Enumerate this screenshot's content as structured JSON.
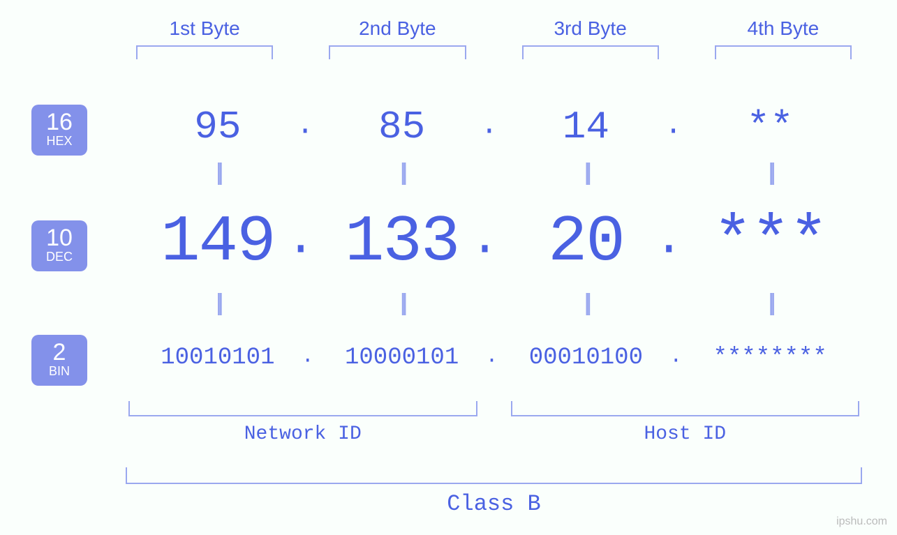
{
  "colors": {
    "background": "#fafffc",
    "text_primary": "#4a61e2",
    "bracket": "#9aa8ef",
    "badge_bg": "#8391ea",
    "badge_fg": "#ffffff",
    "equals": "#9aa8ef",
    "watermark": "#bbbbbb"
  },
  "typography": {
    "mono_family": "Courier New",
    "sans_family": "Arial",
    "byte_label_fontsize": 28,
    "hex_fontsize": 56,
    "dec_fontsize": 94,
    "bin_fontsize": 34,
    "equals_fontsize": 34,
    "section_label_fontsize": 28,
    "class_label_fontsize": 32,
    "badge_num_fontsize": 34,
    "badge_txt_fontsize": 18
  },
  "byte_labels": [
    "1st Byte",
    "2nd Byte",
    "3rd Byte",
    "4th Byte"
  ],
  "bases": {
    "hex": {
      "radix": "16",
      "abbr": "HEX"
    },
    "dec": {
      "radix": "10",
      "abbr": "DEC"
    },
    "bin": {
      "radix": "2",
      "abbr": "BIN"
    }
  },
  "values": {
    "hex": [
      "95",
      "85",
      "14",
      "**"
    ],
    "dec": [
      "149",
      "133",
      "20",
      "***"
    ],
    "bin": [
      "10010101",
      "10000101",
      "00010100",
      "********"
    ]
  },
  "separator": ".",
  "equals_glyph": "||",
  "sections": {
    "network": "Network ID",
    "host": "Host ID"
  },
  "class_label": "Class B",
  "watermark": "ipshu.com"
}
